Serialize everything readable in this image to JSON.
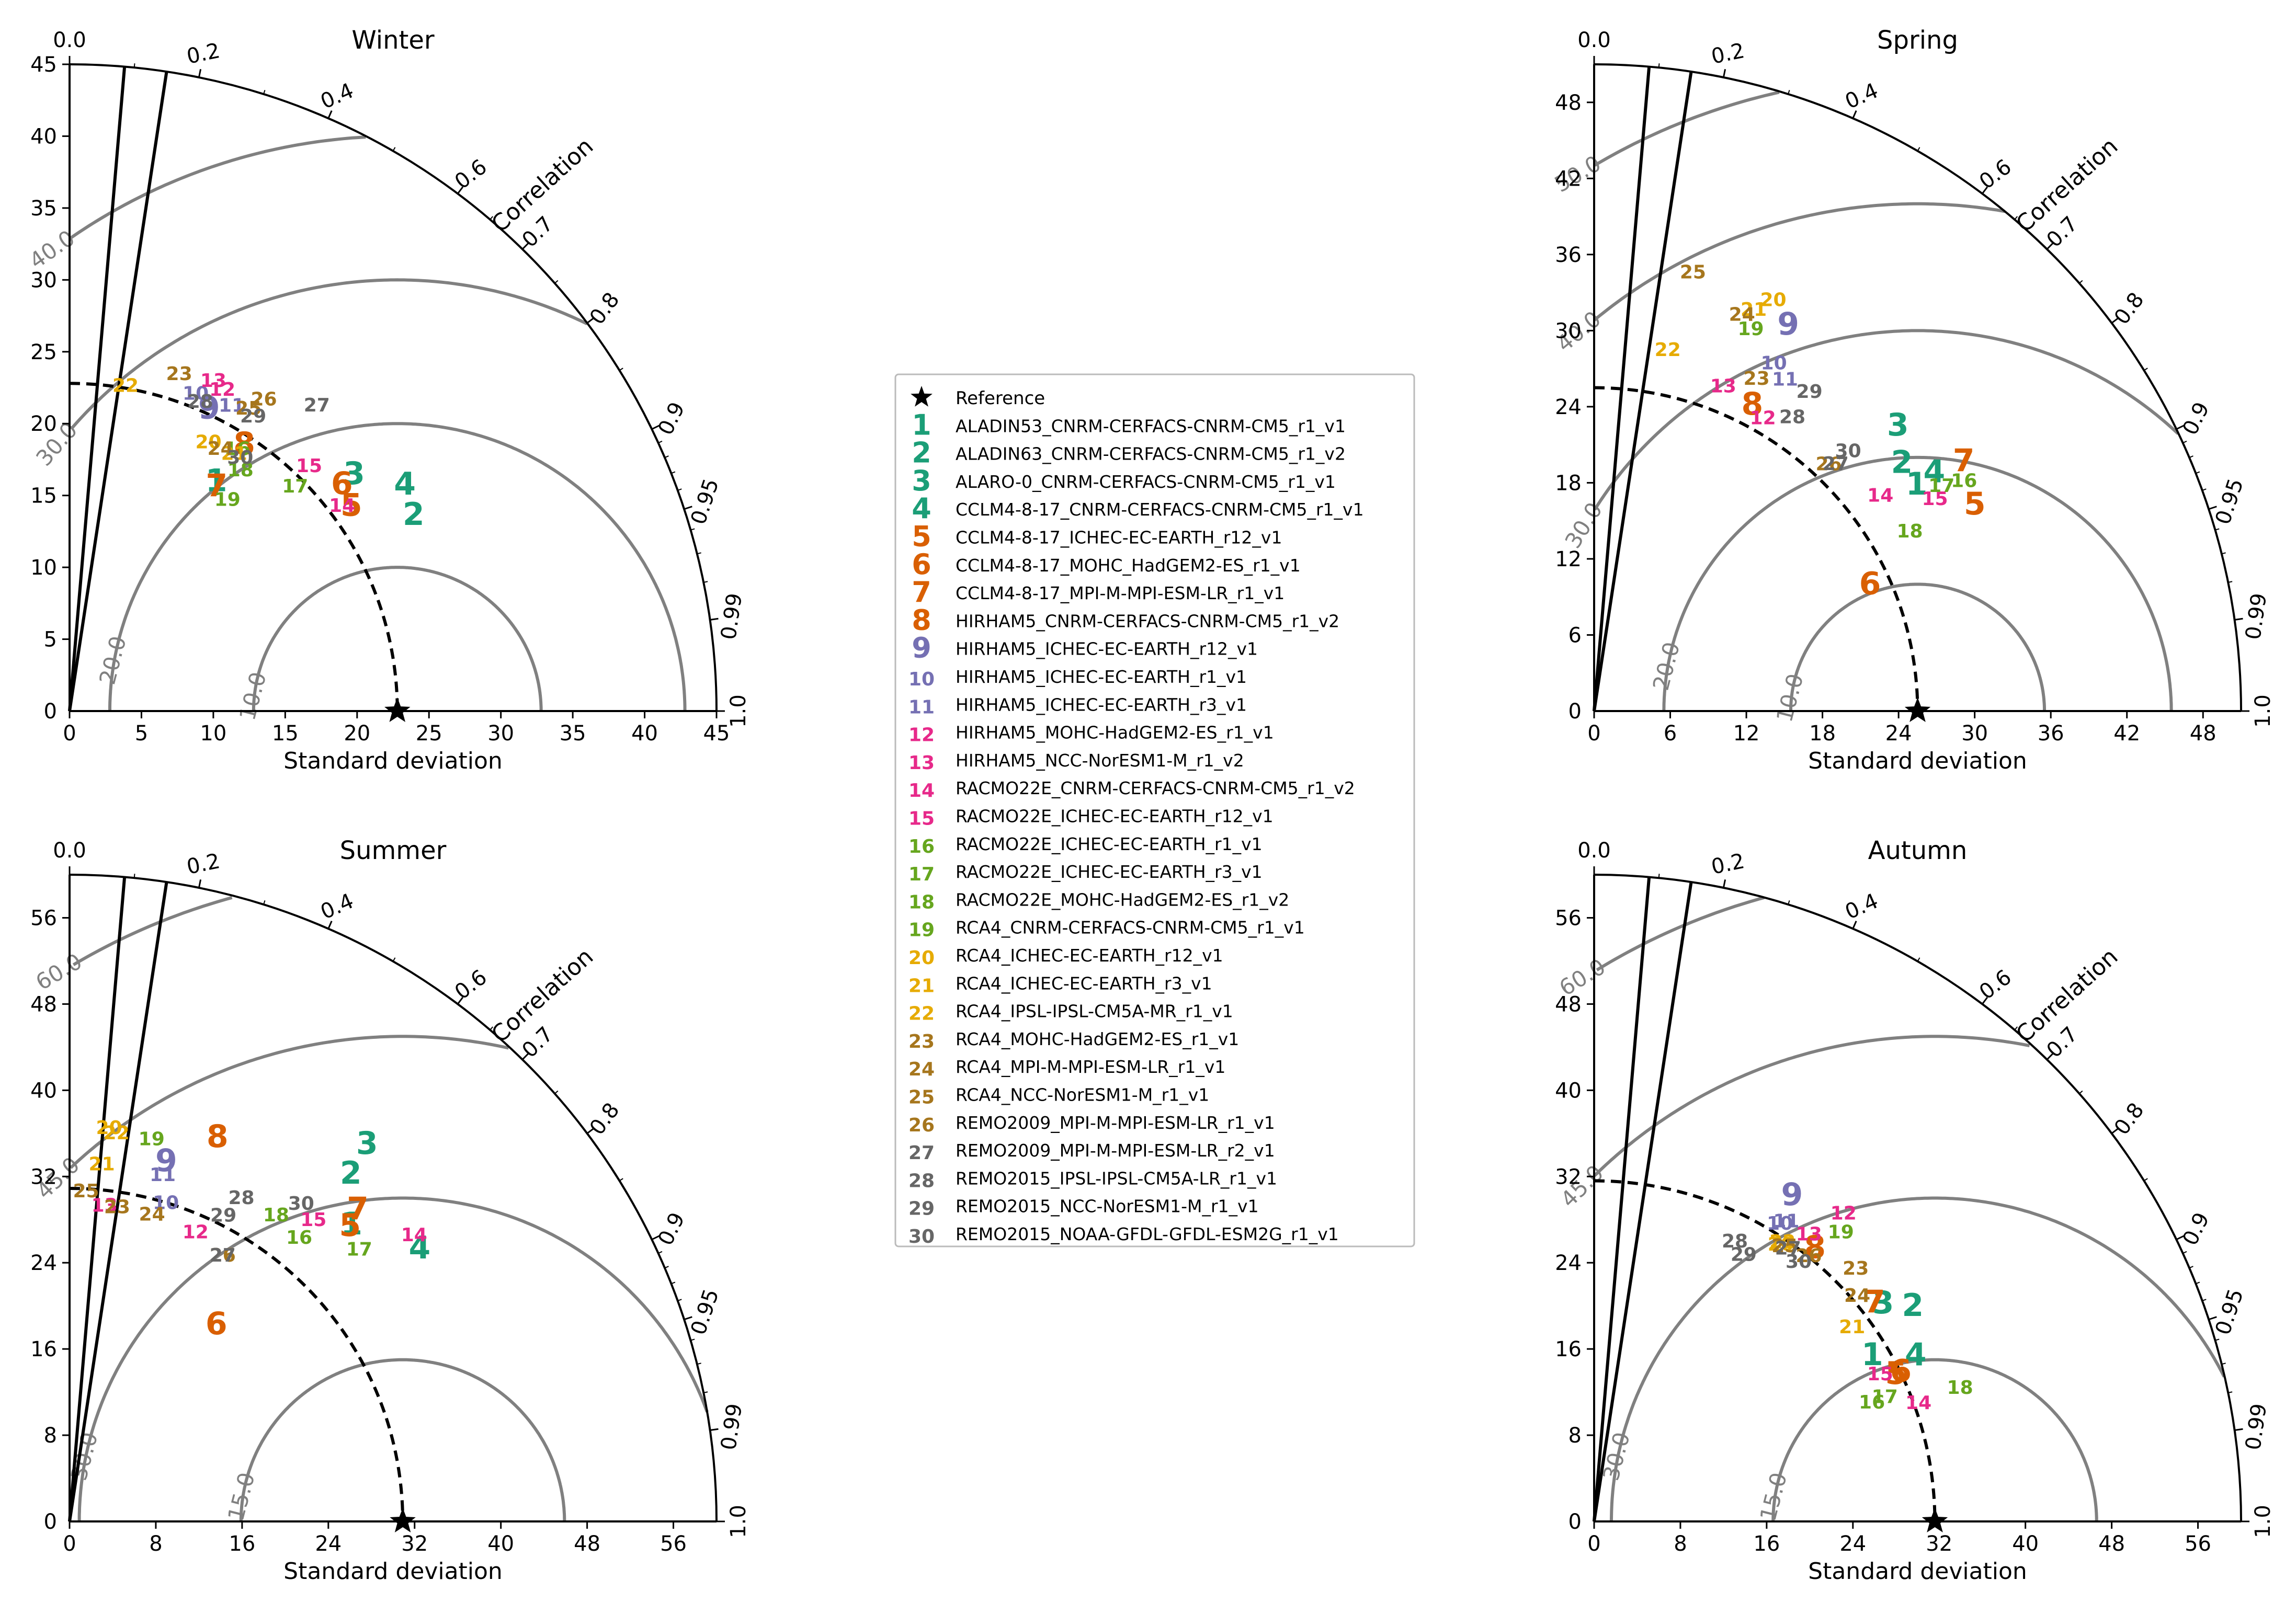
{
  "chart_data": [
    {
      "type": "taylor-diagram",
      "title": "Winter",
      "xlabel": "Standard deviation",
      "correlation_label": "Correlation",
      "std_max": 45,
      "std_ticks": [
        0,
        5,
        10,
        15,
        20,
        25,
        30,
        35,
        40,
        45
      ],
      "corr_ticks": [
        0.0,
        0.2,
        0.4,
        0.6,
        0.7,
        0.8,
        0.9,
        0.95,
        0.99,
        1.0
      ],
      "ref_std": 22.8,
      "rmsd_levels": [
        10.0,
        20.0,
        30.0,
        40.0
      ],
      "models": [
        {
          "id": 1,
          "std": 18.9,
          "corr": 0.54
        },
        {
          "id": 2,
          "std": 27.5,
          "corr": 0.87
        },
        {
          "id": 3,
          "std": 25.7,
          "corr": 0.77
        },
        {
          "id": 4,
          "std": 28.1,
          "corr": 0.83
        },
        {
          "id": 5,
          "std": 24.2,
          "corr": 0.81
        },
        {
          "id": 6,
          "std": 24.6,
          "corr": 0.77
        },
        {
          "id": 7,
          "std": 18.6,
          "corr": 0.55
        },
        {
          "id": 8,
          "std": 22.1,
          "corr": 0.55
        },
        {
          "id": 9,
          "std": 23.1,
          "corr": 0.42
        },
        {
          "id": 10,
          "std": 23.7,
          "corr": 0.37
        },
        {
          "id": 11,
          "std": 24.0,
          "corr": 0.47
        },
        {
          "id": 12,
          "std": 24.7,
          "corr": 0.43
        },
        {
          "id": 13,
          "std": 25.0,
          "corr": 0.4
        },
        {
          "id": 14,
          "std": 23.7,
          "corr": 0.8
        },
        {
          "id": 15,
          "std": 23.8,
          "corr": 0.7
        },
        {
          "id": 16,
          "std": 21.6,
          "corr": 0.54
        },
        {
          "id": 17,
          "std": 22.1,
          "corr": 0.71
        },
        {
          "id": 18,
          "std": 20.5,
          "corr": 0.58
        },
        {
          "id": 19,
          "std": 18.3,
          "corr": 0.6
        },
        {
          "id": 20,
          "std": 21.0,
          "corr": 0.46
        },
        {
          "id": 21,
          "std": 21.2,
          "corr": 0.54
        },
        {
          "id": 22,
          "std": 22.9,
          "corr": 0.17
        },
        {
          "id": 23,
          "std": 24.6,
          "corr": 0.31
        },
        {
          "id": 24,
          "std": 21.0,
          "corr": 0.5
        },
        {
          "id": 25,
          "std": 24.4,
          "corr": 0.51
        },
        {
          "id": 26,
          "std": 25.5,
          "corr": 0.53
        },
        {
          "id": 27,
          "std": 27.3,
          "corr": 0.63
        },
        {
          "id": 28,
          "std": 23.3,
          "corr": 0.39
        },
        {
          "id": 29,
          "std": 24.1,
          "corr": 0.53
        },
        {
          "id": 30,
          "std": 21.2,
          "corr": 0.56
        }
      ]
    },
    {
      "type": "taylor-diagram",
      "title": "Spring",
      "xlabel": "Standard deviation",
      "correlation_label": "Correlation",
      "std_max": 51,
      "std_ticks": [
        0,
        6,
        12,
        18,
        24,
        30,
        36,
        42,
        48
      ],
      "corr_ticks": [
        0.0,
        0.2,
        0.4,
        0.6,
        0.7,
        0.8,
        0.9,
        0.95,
        0.99,
        1.0
      ],
      "ref_std": 25.5,
      "rmsd_levels": [
        10.0,
        20.0,
        30.0,
        40.0,
        50.0
      ],
      "models": [
        {
          "id": 1,
          "std": 31.0,
          "corr": 0.82
        },
        {
          "id": 2,
          "std": 31.1,
          "corr": 0.78
        },
        {
          "id": 3,
          "std": 32.8,
          "corr": 0.73
        },
        {
          "id": 4,
          "std": 32.7,
          "corr": 0.82
        },
        {
          "id": 5,
          "std": 34.1,
          "corr": 0.88
        },
        {
          "id": 6,
          "std": 23.9,
          "corr": 0.91
        },
        {
          "id": 7,
          "std": 35.1,
          "corr": 0.83
        },
        {
          "id": 8,
          "std": 27.1,
          "corr": 0.46
        },
        {
          "id": 9,
          "std": 34.0,
          "corr": 0.45
        },
        {
          "id": 10,
          "std": 30.8,
          "corr": 0.46
        },
        {
          "id": 11,
          "std": 30.1,
          "corr": 0.5
        },
        {
          "id": 12,
          "std": 26.6,
          "corr": 0.5
        },
        {
          "id": 13,
          "std": 27.5,
          "corr": 0.37
        },
        {
          "id": 14,
          "std": 28.2,
          "corr": 0.8
        },
        {
          "id": 15,
          "std": 31.6,
          "corr": 0.85
        },
        {
          "id": 16,
          "std": 34.3,
          "corr": 0.85
        },
        {
          "id": 17,
          "std": 32.6,
          "corr": 0.84
        },
        {
          "id": 18,
          "std": 28.6,
          "corr": 0.87
        },
        {
          "id": 19,
          "std": 32.5,
          "corr": 0.38
        },
        {
          "id": 20,
          "std": 35.3,
          "corr": 0.4
        },
        {
          "id": 21,
          "std": 34.0,
          "corr": 0.37
        },
        {
          "id": 22,
          "std": 29.0,
          "corr": 0.2
        },
        {
          "id": 23,
          "std": 29.1,
          "corr": 0.44
        },
        {
          "id": 24,
          "std": 33.3,
          "corr": 0.35
        },
        {
          "id": 25,
          "std": 35.4,
          "corr": 0.22
        },
        {
          "id": 26,
          "std": 26.8,
          "corr": 0.69
        },
        {
          "id": 27,
          "std": 27.2,
          "corr": 0.7
        },
        {
          "id": 28,
          "std": 27.9,
          "corr": 0.56
        },
        {
          "id": 29,
          "std": 30.3,
          "corr": 0.56
        },
        {
          "id": 30,
          "std": 28.6,
          "corr": 0.7
        }
      ]
    },
    {
      "type": "taylor-diagram",
      "title": "Summer",
      "xlabel": "Standard deviation",
      "correlation_label": "Correlation",
      "std_max": 60,
      "std_ticks": [
        0,
        8,
        16,
        24,
        32,
        40,
        48,
        56
      ],
      "corr_ticks": [
        0.0,
        0.2,
        0.4,
        0.6,
        0.7,
        0.8,
        0.9,
        0.95,
        0.99,
        1.0
      ],
      "ref_std": 30.9,
      "rmsd_levels": [
        15.0,
        30.0,
        45.0,
        60.0
      ],
      "models": [
        {
          "id": 1,
          "std": 37.9,
          "corr": 0.69
        },
        {
          "id": 2,
          "std": 41.4,
          "corr": 0.63
        },
        {
          "id": 3,
          "std": 44.5,
          "corr": 0.62
        },
        {
          "id": 4,
          "std": 41.1,
          "corr": 0.79
        },
        {
          "id": 5,
          "std": 37.7,
          "corr": 0.69
        },
        {
          "id": 6,
          "std": 22.7,
          "corr": 0.6
        },
        {
          "id": 7,
          "std": 39.3,
          "corr": 0.68
        },
        {
          "id": 8,
          "std": 38.1,
          "corr": 0.36
        },
        {
          "id": 9,
          "std": 34.5,
          "corr": 0.26
        },
        {
          "id": 10,
          "std": 30.8,
          "corr": 0.29
        },
        {
          "id": 11,
          "std": 33.2,
          "corr": 0.26
        },
        {
          "id": 12,
          "std": 29.2,
          "corr": 0.4
        },
        {
          "id": 13,
          "std": 29.4,
          "corr": 0.11
        },
        {
          "id": 14,
          "std": 41.5,
          "corr": 0.77
        },
        {
          "id": 15,
          "std": 35.9,
          "corr": 0.63
        },
        {
          "id": 16,
          "std": 33.8,
          "corr": 0.63
        },
        {
          "id": 17,
          "std": 36.8,
          "corr": 0.73
        },
        {
          "id": 18,
          "std": 34.2,
          "corr": 0.56
        },
        {
          "id": 19,
          "std": 36.2,
          "corr": 0.21
        },
        {
          "id": 20,
          "std": 36.6,
          "corr": 0.1
        },
        {
          "id": 21,
          "std": 33.2,
          "corr": 0.09
        },
        {
          "id": 22,
          "std": 36.2,
          "corr": 0.12
        },
        {
          "id": 23,
          "std": 29.4,
          "corr": 0.15
        },
        {
          "id": 24,
          "std": 29.4,
          "corr": 0.26
        },
        {
          "id": 25,
          "std": 30.6,
          "corr": 0.05
        },
        {
          "id": 26,
          "std": 28.4,
          "corr": 0.5
        },
        {
          "id": 27,
          "std": 28.4,
          "corr": 0.5
        },
        {
          "id": 28,
          "std": 33.9,
          "corr": 0.47
        },
        {
          "id": 29,
          "std": 31.7,
          "corr": 0.45
        },
        {
          "id": 30,
          "std": 36.4,
          "corr": 0.59
        }
      ]
    },
    {
      "type": "taylor-diagram",
      "title": "Autumn",
      "xlabel": "Standard deviation",
      "correlation_label": "Correlation",
      "std_max": 60,
      "std_ticks": [
        0,
        8,
        16,
        24,
        32,
        40,
        48,
        56
      ],
      "corr_ticks": [
        0.0,
        0.2,
        0.4,
        0.6,
        0.7,
        0.8,
        0.9,
        0.95,
        0.99,
        1.0
      ],
      "ref_std": 31.6,
      "rmsd_levels": [
        15.0,
        30.0,
        45.0,
        60.0
      ],
      "models": [
        {
          "id": 1,
          "std": 30.0,
          "corr": 0.86
        },
        {
          "id": 2,
          "std": 35.6,
          "corr": 0.83
        },
        {
          "id": 3,
          "std": 33.5,
          "corr": 0.8
        },
        {
          "id": 4,
          "std": 33.5,
          "corr": 0.89
        },
        {
          "id": 5,
          "std": 31.1,
          "corr": 0.9
        },
        {
          "id": 6,
          "std": 31.6,
          "corr": 0.9
        },
        {
          "id": 7,
          "std": 32.9,
          "corr": 0.79
        },
        {
          "id": 8,
          "std": 32.5,
          "corr": 0.63
        },
        {
          "id": 9,
          "std": 35.3,
          "corr": 0.52
        },
        {
          "id": 10,
          "std": 32.5,
          "corr": 0.53
        },
        {
          "id": 11,
          "std": 33.0,
          "corr": 0.54
        },
        {
          "id": 12,
          "std": 36.7,
          "corr": 0.63
        },
        {
          "id": 13,
          "std": 33.2,
          "corr": 0.6
        },
        {
          "id": 14,
          "std": 32.0,
          "corr": 0.94
        },
        {
          "id": 15,
          "std": 29.8,
          "corr": 0.89
        },
        {
          "id": 16,
          "std": 28.0,
          "corr": 0.92
        },
        {
          "id": 17,
          "std": 29.3,
          "corr": 0.92
        },
        {
          "id": 18,
          "std": 36.1,
          "corr": 0.94
        },
        {
          "id": 19,
          "std": 35.2,
          "corr": 0.65
        },
        {
          "id": 20,
          "std": 30.9,
          "corr": 0.56
        },
        {
          "id": 21,
          "std": 29.9,
          "corr": 0.8
        },
        {
          "id": 22,
          "std": 31.2,
          "corr": 0.56
        },
        {
          "id": 23,
          "std": 33.7,
          "corr": 0.72
        },
        {
          "id": 24,
          "std": 32.1,
          "corr": 0.76
        },
        {
          "id": 25,
          "std": 31.0,
          "corr": 0.57
        },
        {
          "id": 26,
          "std": 31.6,
          "corr": 0.63
        },
        {
          "id": 27,
          "std": 31.0,
          "corr": 0.58
        },
        {
          "id": 28,
          "std": 29.0,
          "corr": 0.45
        },
        {
          "id": 29,
          "std": 28.3,
          "corr": 0.49
        },
        {
          "id": 30,
          "std": 30.6,
          "corr": 0.62
        }
      ]
    }
  ],
  "legend": {
    "reference_label": "Reference",
    "colors": {
      "teal": "#1b9e77",
      "orange": "#d95f02",
      "purple": "#7570b3",
      "magenta": "#e7298a",
      "green": "#66a61e",
      "yellow": "#e6ab02",
      "brown": "#a6761d",
      "gray": "#666666"
    },
    "entries": [
      {
        "id": 1,
        "name": "ALADIN53_CNRM-CERFACS-CNRM-CM5_r1_v1",
        "color": "#1b9e77"
      },
      {
        "id": 2,
        "name": "ALADIN63_CNRM-CERFACS-CNRM-CM5_r1_v2",
        "color": "#1b9e77"
      },
      {
        "id": 3,
        "name": "ALARO-0_CNRM-CERFACS-CNRM-CM5_r1_v1",
        "color": "#1b9e77"
      },
      {
        "id": 4,
        "name": "CCLM4-8-17_CNRM-CERFACS-CNRM-CM5_r1_v1",
        "color": "#1b9e77"
      },
      {
        "id": 5,
        "name": "CCLM4-8-17_ICHEC-EC-EARTH_r12_v1",
        "color": "#d95f02"
      },
      {
        "id": 6,
        "name": "CCLM4-8-17_MOHC_HadGEM2-ES_r1_v1",
        "color": "#d95f02"
      },
      {
        "id": 7,
        "name": "CCLM4-8-17_MPI-M-MPI-ESM-LR_r1_v1",
        "color": "#d95f02"
      },
      {
        "id": 8,
        "name": "HIRHAM5_CNRM-CERFACS-CNRM-CM5_r1_v2",
        "color": "#d95f02"
      },
      {
        "id": 9,
        "name": "HIRHAM5_ICHEC-EC-EARTH_r12_v1",
        "color": "#7570b3"
      },
      {
        "id": 10,
        "name": "HIRHAM5_ICHEC-EC-EARTH_r1_v1",
        "color": "#7570b3"
      },
      {
        "id": 11,
        "name": "HIRHAM5_ICHEC-EC-EARTH_r3_v1",
        "color": "#7570b3"
      },
      {
        "id": 12,
        "name": "HIRHAM5_MOHC-HadGEM2-ES_r1_v1",
        "color": "#e7298a"
      },
      {
        "id": 13,
        "name": "HIRHAM5_NCC-NorESM1-M_r1_v2",
        "color": "#e7298a"
      },
      {
        "id": 14,
        "name": "RACMO22E_CNRM-CERFACS-CNRM-CM5_r1_v2",
        "color": "#e7298a"
      },
      {
        "id": 15,
        "name": "RACMO22E_ICHEC-EC-EARTH_r12_v1",
        "color": "#e7298a"
      },
      {
        "id": 16,
        "name": "RACMO22E_ICHEC-EC-EARTH_r1_v1",
        "color": "#66a61e"
      },
      {
        "id": 17,
        "name": "RACMO22E_ICHEC-EC-EARTH_r3_v1",
        "color": "#66a61e"
      },
      {
        "id": 18,
        "name": "RACMO22E_MOHC-HadGEM2-ES_r1_v2",
        "color": "#66a61e"
      },
      {
        "id": 19,
        "name": "RCA4_CNRM-CERFACS-CNRM-CM5_r1_v1",
        "color": "#66a61e"
      },
      {
        "id": 20,
        "name": "RCA4_ICHEC-EC-EARTH_r12_v1",
        "color": "#e6ab02"
      },
      {
        "id": 21,
        "name": "RCA4_ICHEC-EC-EARTH_r3_v1",
        "color": "#e6ab02"
      },
      {
        "id": 22,
        "name": "RCA4_IPSL-IPSL-CM5A-MR_r1_v1",
        "color": "#e6ab02"
      },
      {
        "id": 23,
        "name": "RCA4_MOHC-HadGEM2-ES_r1_v1",
        "color": "#a6761d"
      },
      {
        "id": 24,
        "name": "RCA4_MPI-M-MPI-ESM-LR_r1_v1",
        "color": "#a6761d"
      },
      {
        "id": 25,
        "name": "RCA4_NCC-NorESM1-M_r1_v1",
        "color": "#a6761d"
      },
      {
        "id": 26,
        "name": "REMO2009_MPI-M-MPI-ESM-LR_r1_v1",
        "color": "#a6761d"
      },
      {
        "id": 27,
        "name": "REMO2009_MPI-M-MPI-ESM-LR_r2_v1",
        "color": "#666666"
      },
      {
        "id": 28,
        "name": "REMO2015_IPSL-IPSL-CM5A-LR_r1_v1",
        "color": "#666666"
      },
      {
        "id": 29,
        "name": "REMO2015_NCC-NorESM1-M_r1_v1",
        "color": "#666666"
      },
      {
        "id": 30,
        "name": "REMO2015_NOAA-GFDL-GFDL-ESM2G_r1_v1",
        "color": "#666666"
      }
    ]
  }
}
